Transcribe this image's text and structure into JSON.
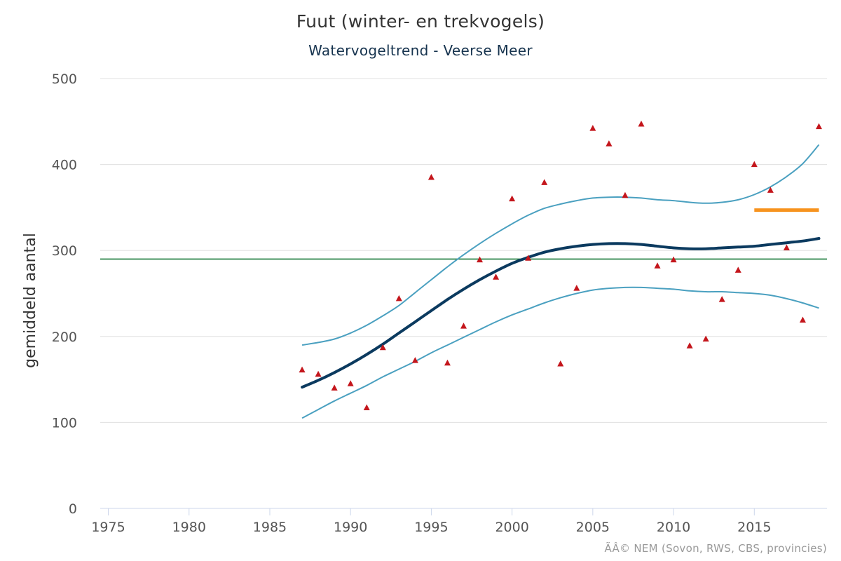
{
  "chart_data": {
    "type": "line",
    "title": "Fuut (winter- en trekvogels)",
    "subtitle": "Watervogeltrend - Veerse Meer",
    "ylabel": "gemiddeld aantal",
    "xlabel": "",
    "credits": "ÃÂ© NEM (Sovon, RWS, CBS, provincies)",
    "xlim": [
      1974.5,
      2019.5
    ],
    "ylim": [
      0,
      500
    ],
    "x_ticks": [
      1975,
      1980,
      1985,
      1990,
      1995,
      2000,
      2005,
      2010,
      2015
    ],
    "y_ticks": [
      0,
      100,
      200,
      300,
      400,
      500
    ],
    "grid": true,
    "legend": "none",
    "colors": {
      "trend": "#0b3a5f",
      "confidence": "#4aa0c0",
      "observations": "#c4161c",
      "reference": "#1a7a3a",
      "recent_mean": "#f7931e",
      "grid": "#e0e0e0"
    },
    "series": [
      {
        "kind": "scatter",
        "x": [
          1987,
          1988,
          1989,
          1990,
          1991,
          1992,
          1993,
          1994,
          1995,
          1996,
          1997,
          1998,
          1999,
          2000,
          2001,
          2002,
          2003,
          2004,
          2005,
          2006,
          2007,
          2008,
          2009,
          2010,
          2011,
          2012,
          2013,
          2014,
          2015,
          2016,
          2017,
          2018,
          2019
        ],
        "values": [
          161,
          156,
          140,
          145,
          117,
          187,
          244,
          172,
          385,
          169,
          212,
          289,
          269,
          360,
          291,
          379,
          168,
          256,
          442,
          424,
          364,
          447,
          282,
          289,
          189,
          197,
          243,
          277,
          400,
          370,
          303,
          219,
          444
        ]
      },
      {
        "kind": "line",
        "role": "trend",
        "x": [
          1987,
          1988,
          1989,
          1990,
          1991,
          1992,
          1993,
          1994,
          1995,
          1996,
          1997,
          1998,
          1999,
          2000,
          2001,
          2002,
          2003,
          2004,
          2005,
          2006,
          2007,
          2008,
          2009,
          2010,
          2011,
          2012,
          2013,
          2014,
          2015,
          2016,
          2017,
          2018,
          2019
        ],
        "values": [
          141,
          149,
          158,
          168,
          179,
          191,
          204,
          217,
          230,
          243,
          255,
          266,
          276,
          285,
          292,
          298,
          302,
          305,
          307,
          308,
          308,
          307,
          305,
          303,
          302,
          302,
          303,
          304,
          305,
          307,
          309,
          311,
          314
        ]
      },
      {
        "kind": "line",
        "role": "upper-confidence",
        "x": [
          1987,
          1988,
          1989,
          1990,
          1991,
          1992,
          1993,
          1994,
          1995,
          1996,
          1997,
          1998,
          1999,
          2000,
          2001,
          2002,
          2003,
          2004,
          2005,
          2006,
          2007,
          2008,
          2009,
          2010,
          2011,
          2012,
          2013,
          2014,
          2015,
          2016,
          2017,
          2018,
          2019
        ],
        "values": [
          190,
          193,
          197,
          204,
          213,
          224,
          236,
          251,
          266,
          281,
          295,
          308,
          320,
          331,
          341,
          349,
          354,
          358,
          361,
          362,
          362,
          361,
          359,
          358,
          356,
          355,
          356,
          359,
          365,
          374,
          386,
          401,
          423
        ]
      },
      {
        "kind": "line",
        "role": "lower-confidence",
        "x": [
          1987,
          1988,
          1989,
          1990,
          1991,
          1992,
          1993,
          1994,
          1995,
          1996,
          1997,
          1998,
          1999,
          2000,
          2001,
          2002,
          2003,
          2004,
          2005,
          2006,
          2007,
          2008,
          2009,
          2010,
          2011,
          2012,
          2013,
          2014,
          2015,
          2016,
          2017,
          2018,
          2019
        ],
        "values": [
          105,
          115,
          125,
          134,
          143,
          153,
          162,
          171,
          181,
          190,
          199,
          208,
          217,
          225,
          232,
          239,
          245,
          250,
          254,
          256,
          257,
          257,
          256,
          255,
          253,
          252,
          252,
          251,
          250,
          248,
          244,
          239,
          233
        ]
      },
      {
        "kind": "hline",
        "role": "reference",
        "x": [
          1974.5,
          2019.5
        ],
        "values": [
          290,
          290
        ]
      },
      {
        "kind": "segment",
        "role": "recent-mean",
        "x": [
          2015,
          2019
        ],
        "values": [
          347,
          347
        ]
      }
    ]
  }
}
